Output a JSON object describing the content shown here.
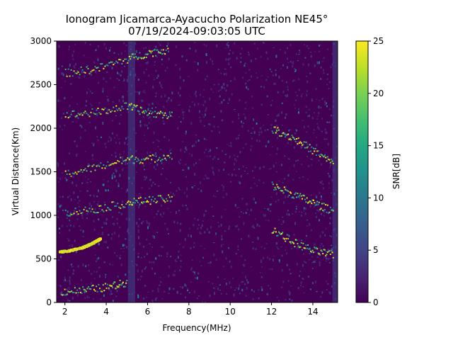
{
  "chart_data": {
    "type": "heatmap",
    "title": "Ionogram Jicamarca-Ayacucho Polarization NE45°",
    "subtitle": "07/19/2024-09:03:05 UTC",
    "xlabel": "Frequency(MHz)",
    "ylabel": "Virtual Distance(Km)",
    "xlim": [
      1.6,
      15.2
    ],
    "ylim": [
      0,
      3000
    ],
    "x_ticks": [
      2,
      4,
      6,
      8,
      10,
      12,
      14
    ],
    "y_ticks": [
      0,
      500,
      1000,
      1500,
      2000,
      2500,
      3000
    ],
    "grid": false,
    "colorbar": {
      "label": "SNR[dB]",
      "range": [
        0,
        25
      ],
      "ticks": [
        0,
        5,
        10,
        15,
        20,
        25
      ],
      "colormap": "viridis"
    },
    "traces": [
      {
        "description": "strong low-frequency echo",
        "points": [
          [
            1.7,
            590
          ],
          [
            2.2,
            605
          ],
          [
            2.8,
            640
          ],
          [
            3.3,
            690
          ],
          [
            3.7,
            745
          ]
        ]
      },
      {
        "description": "echo band",
        "points": [
          [
            1.8,
            130
          ],
          [
            3.0,
            150
          ],
          [
            4.2,
            190
          ],
          [
            5.0,
            240
          ]
        ]
      },
      {
        "description": "echo band",
        "points": [
          [
            2.0,
            1040
          ],
          [
            3.5,
            1080
          ],
          [
            5.0,
            1150
          ],
          [
            6.0,
            1180
          ],
          [
            7.2,
            1200
          ]
        ]
      },
      {
        "description": "echo band",
        "points": [
          [
            2.0,
            1480
          ],
          [
            3.5,
            1560
          ],
          [
            5.0,
            1650
          ],
          [
            6.0,
            1650
          ],
          [
            7.2,
            1700
          ]
        ]
      },
      {
        "description": "echo band",
        "points": [
          [
            2.0,
            2160
          ],
          [
            3.5,
            2190
          ],
          [
            5.0,
            2260
          ],
          [
            6.0,
            2180
          ],
          [
            7.2,
            2160
          ]
        ]
      },
      {
        "description": "echo band",
        "points": [
          [
            2.0,
            2640
          ],
          [
            3.5,
            2690
          ],
          [
            5.0,
            2800
          ],
          [
            6.0,
            2870
          ],
          [
            7.0,
            2910
          ]
        ]
      },
      {
        "description": "high-frequency scattered returns",
        "points": [
          [
            12.0,
            2000
          ],
          [
            13.0,
            1900
          ],
          [
            14.0,
            1750
          ],
          [
            15.0,
            1600
          ]
        ]
      },
      {
        "description": "high-frequency scattered returns",
        "points": [
          [
            12.0,
            1350
          ],
          [
            13.0,
            1250
          ],
          [
            14.0,
            1150
          ],
          [
            15.0,
            1050
          ]
        ]
      },
      {
        "description": "high-frequency scattered returns",
        "points": [
          [
            12.0,
            850
          ],
          [
            13.0,
            700
          ],
          [
            14.0,
            600
          ],
          [
            15.0,
            550
          ]
        ]
      }
    ]
  },
  "colors": {
    "background": "#ffffff",
    "axis": "#000000",
    "cmap_low": "#440154",
    "cmap_high": "#fde725"
  }
}
